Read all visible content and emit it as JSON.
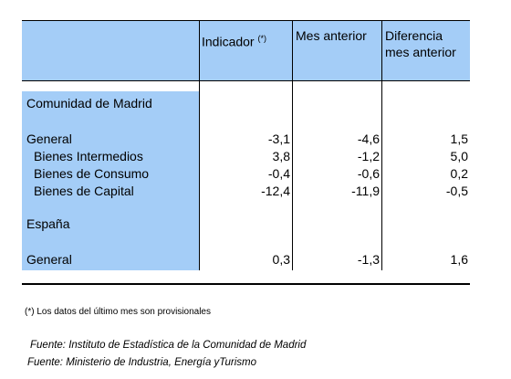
{
  "table": {
    "columns": [
      "Indicador",
      "Mes anterior",
      [
        "Diferencia",
        "mes anterior"
      ]
    ],
    "header_note": "(*)",
    "sections": [
      {
        "title": "Comunidad de Madrid",
        "rows": [
          {
            "label": "General",
            "values": [
              "-3,1",
              "-4,6",
              "1,5"
            ]
          },
          {
            "label": "Bienes Intermedios",
            "values": [
              "3,8",
              "-1,2",
              "5,0"
            ]
          },
          {
            "label": "Bienes de Consumo",
            "values": [
              "-0,4",
              "-0,6",
              "0,2"
            ]
          },
          {
            "label": "Bienes de Capital",
            "values": [
              "-12,4",
              "-11,9",
              "-0,5"
            ]
          }
        ]
      },
      {
        "title": "España",
        "rows": [
          {
            "label": "General",
            "values": [
              "0,3",
              "-1,3",
              "1,6"
            ]
          }
        ]
      }
    ]
  },
  "footnote": "(*) Los datos del último mes son provisionales",
  "sources": [
    "Fuente: Instituto de Estadística de la Comunidad de Madrid",
    "Fuente: Ministerio de Industria, Energía yTurismo"
  ]
}
